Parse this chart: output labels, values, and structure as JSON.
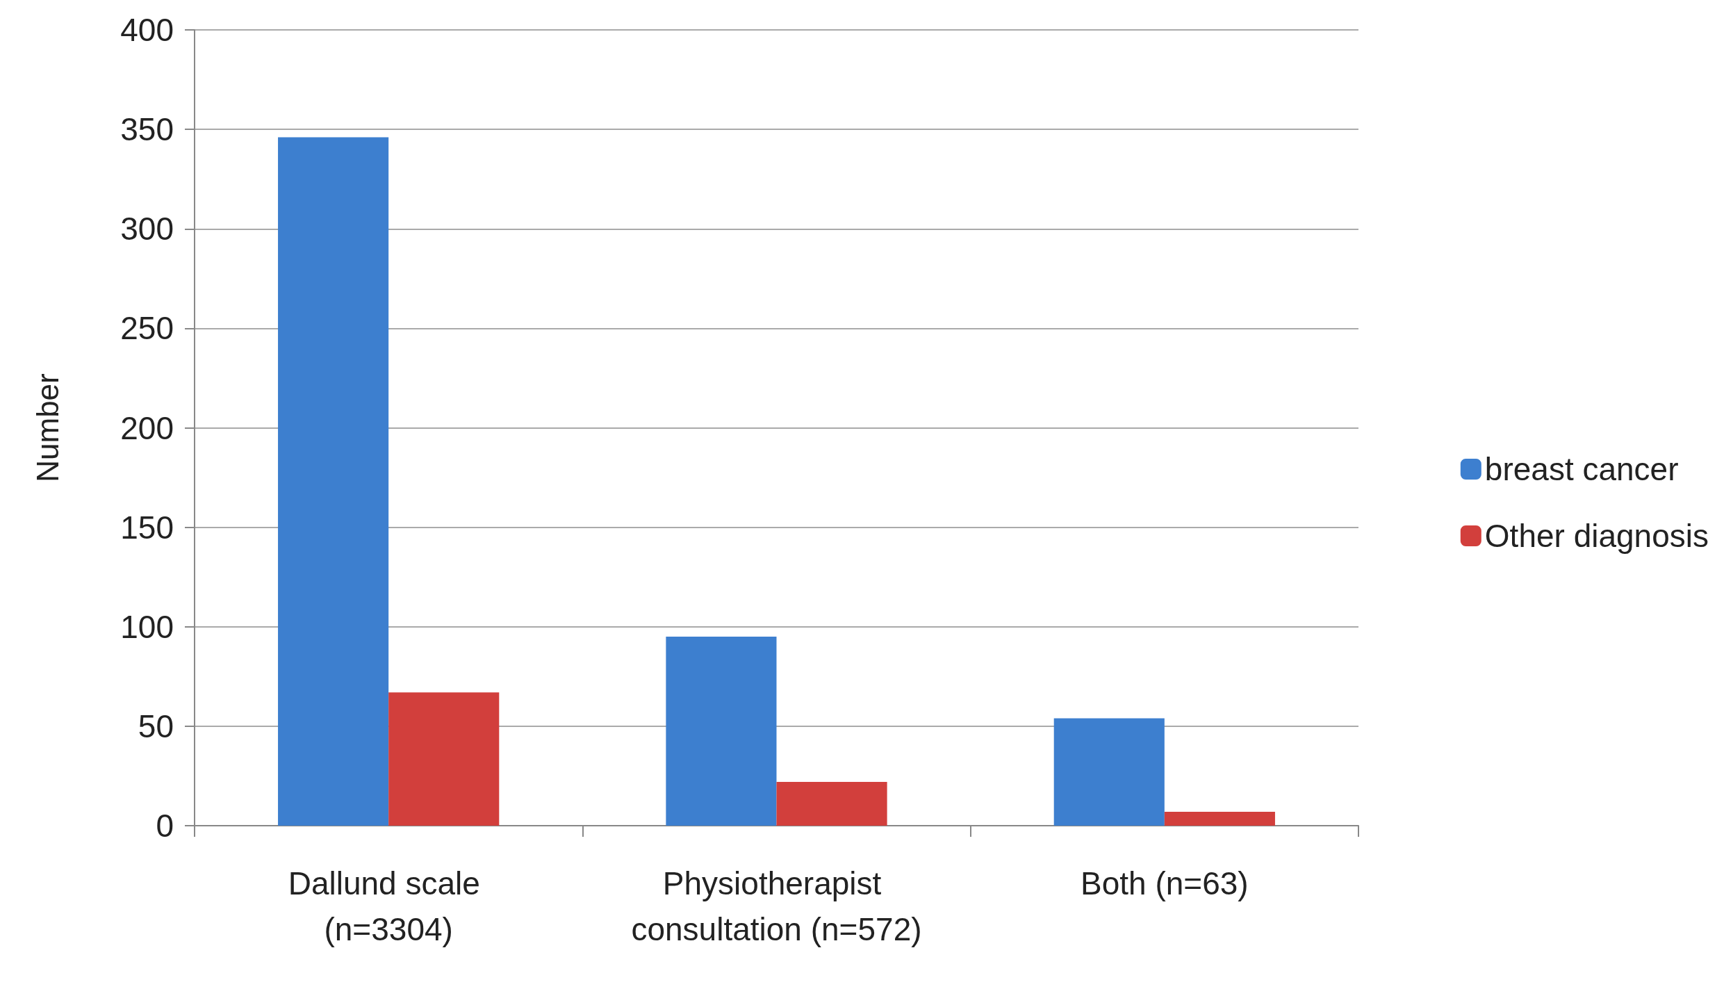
{
  "chart_data": {
    "type": "bar",
    "ylabel": "Number",
    "categories": [
      "Dallund scale (n=3304)",
      "Physiotherapist consultation (n=572)",
      "Both (n=63)"
    ],
    "series": [
      {
        "name": "breast cancer",
        "color": "#3d7fcf",
        "values": [
          346,
          95,
          54
        ]
      },
      {
        "name": "Other diagnosis",
        "color": "#d23f3c",
        "values": [
          67,
          22,
          7
        ]
      }
    ],
    "ylim": [
      0,
      400
    ],
    "yticks": [
      0,
      50,
      100,
      150,
      200,
      250,
      300,
      350,
      400
    ],
    "grid": "y",
    "legend": "right"
  }
}
